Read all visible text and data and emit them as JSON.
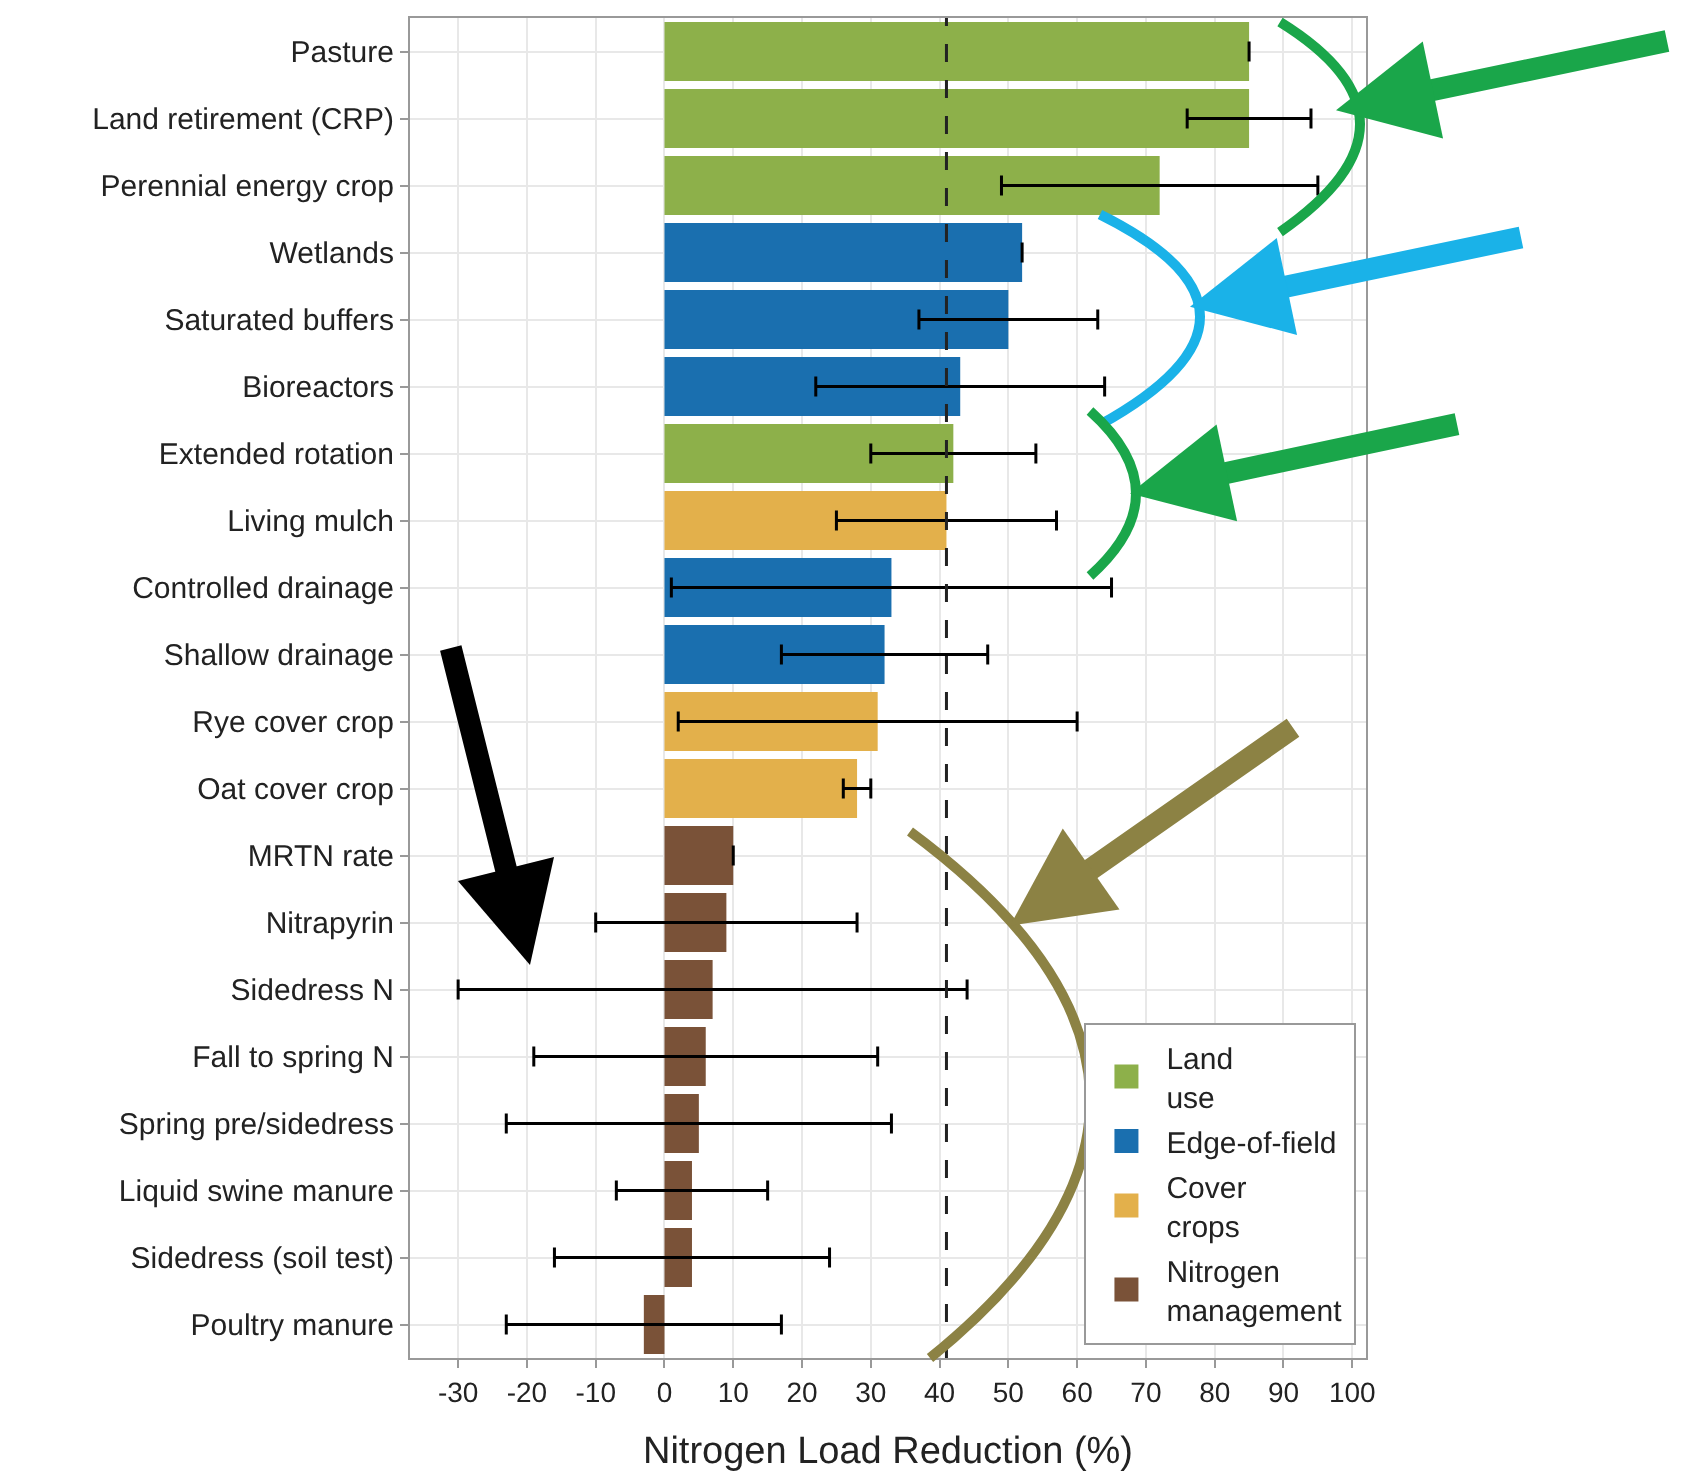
{
  "chart_data": {
    "type": "bar",
    "orientation": "horizontal",
    "xlabel": "Nitrogen Load Reduction (%)",
    "categories": [
      "Pasture",
      "Land retirement (CRP)",
      "Perennial energy crop",
      "Wetlands",
      "Saturated buffers",
      "Bioreactors",
      "Extended rotation",
      "Living mulch",
      "Controlled drainage",
      "Shallow drainage",
      "Rye cover crop",
      "Oat cover crop",
      "MRTN rate",
      "Nitrapyrin",
      "Sidedress N",
      "Fall to spring N",
      "Spring pre/sidedress",
      "Liquid swine manure",
      "Sidedress (soil test)",
      "Poultry manure"
    ],
    "series": [
      {
        "name": "Land use",
        "color": "#8db04a",
        "values": [
          85,
          85,
          72,
          null,
          null,
          null,
          42,
          null,
          null,
          null,
          null,
          null,
          null,
          null,
          null,
          null,
          null,
          null,
          null,
          null
        ],
        "errors": [
          null,
          [
            76,
            94
          ],
          [
            49,
            95
          ],
          null,
          null,
          null,
          [
            30,
            54
          ],
          null,
          null,
          null,
          null,
          null,
          null,
          null,
          null,
          null,
          null,
          null,
          null,
          null
        ]
      },
      {
        "name": "Edge-of-field",
        "color": "#1a6faf",
        "values": [
          null,
          null,
          null,
          52,
          50,
          43,
          null,
          null,
          33,
          32,
          null,
          null,
          null,
          null,
          null,
          null,
          null,
          null,
          null,
          null
        ],
        "errors": [
          null,
          null,
          null,
          null,
          [
            37,
            63
          ],
          [
            22,
            64
          ],
          null,
          null,
          [
            1,
            65
          ],
          [
            17,
            47
          ],
          null,
          null,
          null,
          null,
          null,
          null,
          null,
          null,
          null,
          null
        ]
      },
      {
        "name": "Cover crops",
        "color": "#e3b04b",
        "values": [
          null,
          null,
          null,
          null,
          null,
          null,
          null,
          41,
          null,
          null,
          31,
          28,
          null,
          null,
          null,
          null,
          null,
          null,
          null,
          null
        ],
        "errors": [
          null,
          null,
          null,
          null,
          null,
          null,
          null,
          [
            25,
            57
          ],
          null,
          null,
          [
            2,
            60
          ],
          [
            26,
            30
          ],
          null,
          null,
          null,
          null,
          null,
          null,
          null,
          null
        ]
      },
      {
        "name": "Nitrogen management",
        "color": "#7a5238",
        "values": [
          null,
          null,
          null,
          null,
          null,
          null,
          null,
          null,
          null,
          null,
          null,
          null,
          10,
          9,
          7,
          6,
          5,
          4,
          4,
          -3
        ],
        "errors": [
          null,
          null,
          null,
          null,
          null,
          null,
          null,
          null,
          null,
          null,
          null,
          null,
          null,
          [
            -10,
            28
          ],
          [
            -30,
            44
          ],
          [
            -19,
            31
          ],
          [
            -23,
            33
          ],
          [
            -7,
            15
          ],
          [
            -16,
            24
          ],
          [
            -23,
            17
          ]
        ]
      }
    ],
    "xlim": [
      -37,
      102
    ],
    "xticks": [
      -30,
      -20,
      -10,
      0,
      10,
      20,
      30,
      40,
      50,
      60,
      70,
      80,
      90,
      100
    ],
    "ref_lines": [
      {
        "axis": "x",
        "value": 41,
        "color": "#222222",
        "line_style": "dashed"
      }
    ],
    "grid": true,
    "legend": "bottom right"
  }
}
